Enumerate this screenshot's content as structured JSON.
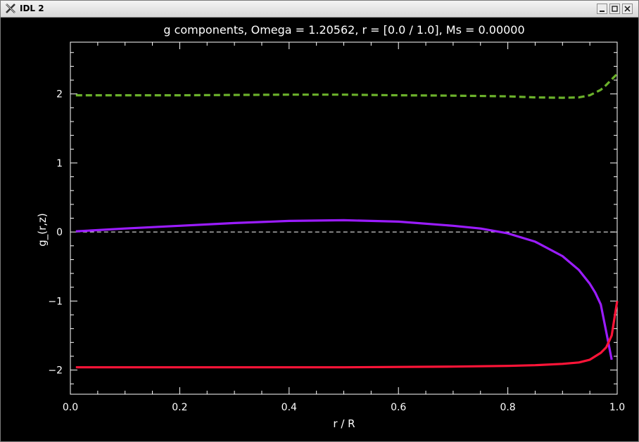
{
  "window": {
    "title": "IDL 2",
    "controls": [
      "minimize-icon",
      "maximize-icon",
      "close-icon"
    ]
  },
  "colors": {
    "background": "#000000",
    "axes": "#ffffff",
    "green_series": "#6bb12b",
    "purple_series": "#9b1cff",
    "red_series": "#ff1438",
    "zero_line": "#ffffff"
  },
  "chart_data": {
    "type": "line",
    "title": "g components, Omega =  1.20562, r = [0.0 / 1.0], Ms =  0.00000",
    "xlabel": "r / R",
    "ylabel": "g_(r,z)",
    "xlim": [
      0.0,
      1.0
    ],
    "ylim": [
      -2.35,
      2.75
    ],
    "xticks": [
      "0.0",
      "0.2",
      "0.4",
      "0.6",
      "0.8",
      "1.0"
    ],
    "yticks": [
      "-2",
      "-1",
      "0",
      "1",
      "2"
    ],
    "zero_reference_line": 0,
    "series": [
      {
        "style": "dashed",
        "x": [
          0.01,
          0.1,
          0.2,
          0.3,
          0.4,
          0.5,
          0.6,
          0.7,
          0.8,
          0.85,
          0.9,
          0.93,
          0.95,
          0.97,
          0.98,
          0.99,
          1.0
        ],
        "values": [
          1.98,
          1.98,
          1.98,
          1.985,
          1.99,
          1.99,
          1.98,
          1.975,
          1.965,
          1.95,
          1.945,
          1.95,
          1.98,
          2.06,
          2.13,
          2.21,
          2.29
        ]
      },
      {
        "style": "solid",
        "x": [
          0.01,
          0.1,
          0.2,
          0.3,
          0.4,
          0.5,
          0.6,
          0.7,
          0.75,
          0.8,
          0.85,
          0.9,
          0.93,
          0.95,
          0.96,
          0.97,
          0.98,
          0.99
        ],
        "values": [
          0.01,
          0.05,
          0.09,
          0.13,
          0.16,
          0.17,
          0.15,
          0.09,
          0.05,
          -0.02,
          -0.14,
          -0.35,
          -0.55,
          -0.75,
          -0.88,
          -1.05,
          -1.45,
          -1.85
        ]
      },
      {
        "style": "solid",
        "x": [
          0.01,
          0.1,
          0.2,
          0.3,
          0.4,
          0.5,
          0.6,
          0.7,
          0.8,
          0.85,
          0.9,
          0.93,
          0.95,
          0.96,
          0.97,
          0.98,
          0.99,
          1.0
        ],
        "values": [
          -1.96,
          -1.96,
          -1.96,
          -1.96,
          -1.96,
          -1.96,
          -1.955,
          -1.95,
          -1.94,
          -1.93,
          -1.91,
          -1.89,
          -1.85,
          -1.8,
          -1.75,
          -1.67,
          -1.5,
          -1.0
        ]
      }
    ]
  }
}
